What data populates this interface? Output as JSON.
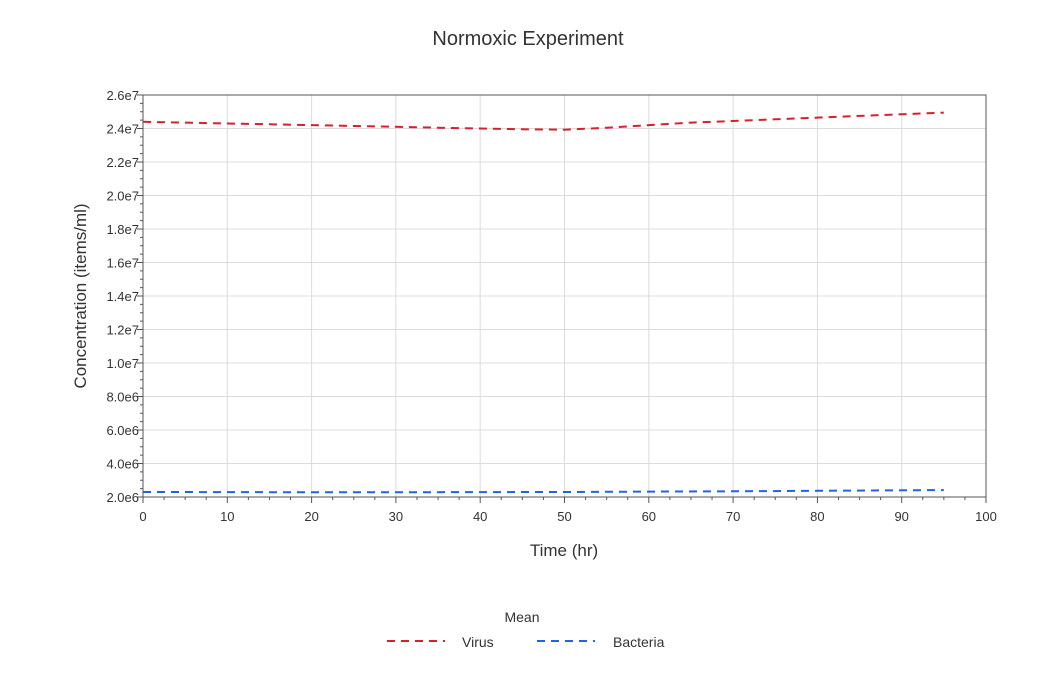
{
  "chart_data": {
    "type": "line",
    "title": "Normoxic Experiment",
    "xlabel": "Time (hr)",
    "ylabel": "Concentration (items/ml)",
    "xlim": [
      0,
      100
    ],
    "ylim": [
      2000000,
      26000000
    ],
    "x_ticks": [
      "0",
      "10",
      "20",
      "30",
      "40",
      "50",
      "60",
      "70",
      "80",
      "90",
      "100"
    ],
    "y_ticks": [
      "2.0e6",
      "4.0e6",
      "6.0e6",
      "8.0e6",
      "1.0e7",
      "1.2e7",
      "1.4e7",
      "1.6e7",
      "1.8e7",
      "2.0e7",
      "2.2e7",
      "2.4e7",
      "2.6e7"
    ],
    "grid": true,
    "legend": {
      "title": "Mean",
      "position": "bottom-center"
    },
    "series": [
      {
        "name": "Virus",
        "color": "#d62030",
        "dash": "dashed",
        "x": [
          0,
          5,
          10,
          15,
          20,
          25,
          30,
          35,
          40,
          45,
          50,
          55,
          60,
          65,
          70,
          75,
          80,
          85,
          90,
          95
        ],
        "y": [
          24400000,
          24350000,
          24300000,
          24250000,
          24200000,
          24150000,
          24100000,
          24050000,
          24000000,
          23950000,
          23930000,
          24050000,
          24200000,
          24350000,
          24450000,
          24550000,
          24650000,
          24750000,
          24850000,
          24950000
        ]
      },
      {
        "name": "Bacteria",
        "color": "#1f64e6",
        "dash": "dashed",
        "x": [
          0,
          10,
          20,
          30,
          40,
          50,
          60,
          70,
          80,
          90,
          95
        ],
        "y": [
          2300000,
          2290000,
          2280000,
          2280000,
          2290000,
          2300000,
          2320000,
          2340000,
          2370000,
          2400000,
          2410000
        ]
      }
    ]
  }
}
